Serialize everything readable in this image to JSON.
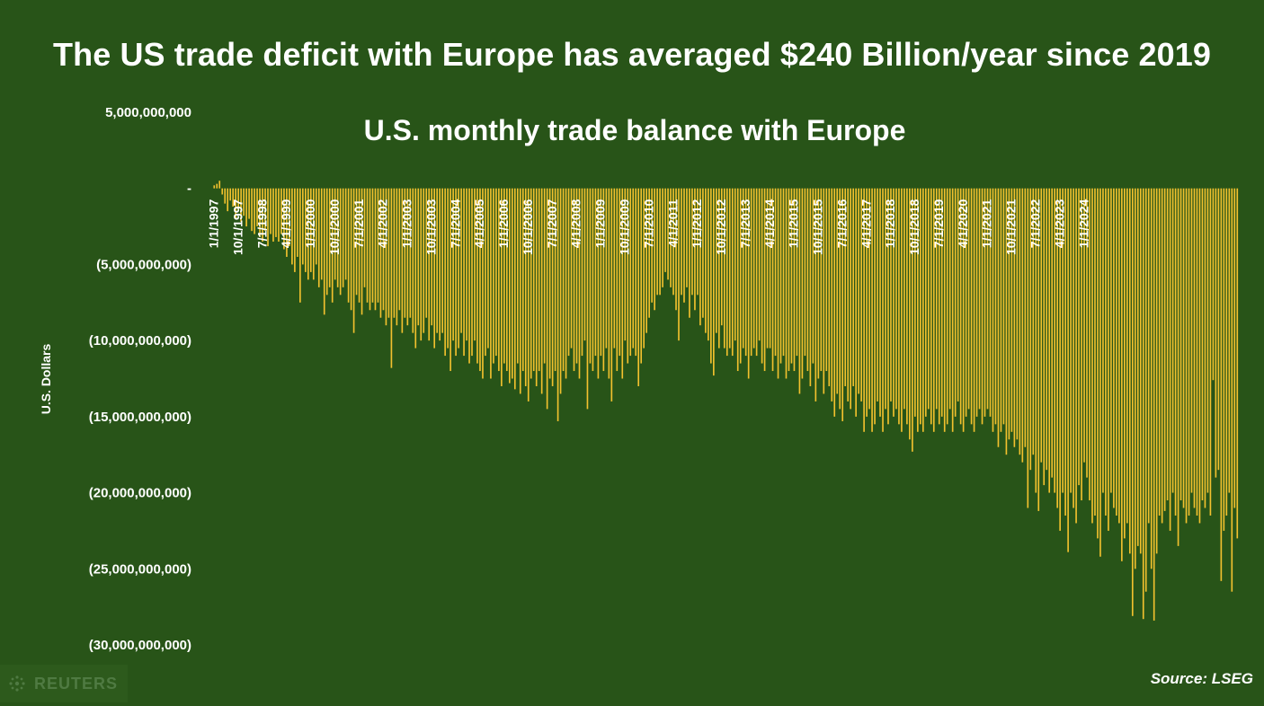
{
  "headline": "The US trade deficit with Europe has averaged $240 Billion/year since 2019",
  "source": "Source: LSEG",
  "logo": {
    "text": "REUTERS",
    "icon": "reuters-dot-logo-icon"
  },
  "colors": {
    "background": "#285418",
    "bar": "#f2c12e",
    "text": "#ffffff"
  },
  "chart_data": {
    "type": "bar",
    "title": "U.S. monthly trade balance with Europe",
    "ylabel": "U.S. Dollars",
    "xlabel": "",
    "ylim": [
      -30000000000,
      5000000000
    ],
    "yticks": [
      5000000000,
      0,
      -5000000000,
      -10000000000,
      -15000000000,
      -20000000000,
      -25000000000,
      -30000000000
    ],
    "ytick_labels": [
      "5,000,000,000",
      "-",
      "(5,000,000,000)",
      "(10,000,000,000)",
      "(15,000,000,000)",
      "(20,000,000,000)",
      "(25,000,000,000)",
      "(30,000,000,000)"
    ],
    "x_start": "1997-01",
    "frequency": "monthly",
    "xtick_labels": [
      "1/1/1997",
      "10/1/1997",
      "7/1/1998",
      "4/1/1999",
      "1/1/2000",
      "10/1/2000",
      "7/1/2001",
      "4/1/2002",
      "1/1/2003",
      "10/1/2003",
      "7/1/2004",
      "4/1/2005",
      "1/1/2006",
      "10/1/2006",
      "7/1/2007",
      "4/1/2008",
      "1/1/2009",
      "10/1/2009",
      "7/1/2010",
      "4/1/2011",
      "1/1/2012",
      "10/1/2012",
      "7/1/2013",
      "4/1/2014",
      "1/1/2015",
      "10/1/2015",
      "7/1/2016",
      "4/1/2017",
      "1/1/2018",
      "10/1/2018",
      "7/1/2019",
      "4/1/2020",
      "1/1/2021",
      "10/1/2021",
      "7/1/2022",
      "4/1/2023",
      "1/1/2024"
    ],
    "series": [
      {
        "values_billions": [
          0.2,
          0.3,
          0.5,
          -0.4,
          -1.0,
          -1.5,
          -0.8,
          -1.2,
          -2.0,
          -1.5,
          -2.2,
          -1.8,
          -2.5,
          -2.0,
          -2.8,
          -3.0,
          -2.5,
          -3.2,
          -3.5,
          -2.8,
          -3.8,
          -3.0,
          -3.5,
          -3.2,
          -3.5,
          -3.0,
          -4.0,
          -4.5,
          -3.8,
          -5.0,
          -5.5,
          -4.5,
          -7.5,
          -5.0,
          -5.5,
          -6.0,
          -5.5,
          -6.0,
          -5.0,
          -6.5,
          -6.0,
          -8.3,
          -7.0,
          -6.5,
          -7.5,
          -6.0,
          -6.5,
          -7.0,
          -6.5,
          -6.0,
          -7.5,
          -8.0,
          -9.5,
          -7.0,
          -7.5,
          -8.3,
          -6.5,
          -7.5,
          -8.0,
          -7.5,
          -8.0,
          -7.5,
          -8.5,
          -8.0,
          -9.0,
          -8.5,
          -11.8,
          -8.5,
          -9.0,
          -8.0,
          -9.5,
          -8.5,
          -9.0,
          -8.5,
          -9.5,
          -10.5,
          -9.0,
          -10.0,
          -9.5,
          -8.5,
          -10.0,
          -9.0,
          -10.5,
          -9.5,
          -10.0,
          -9.5,
          -11.0,
          -10.5,
          -12.0,
          -10.0,
          -11.0,
          -10.5,
          -9.5,
          -11.0,
          -10.0,
          -11.5,
          -11.0,
          -10.0,
          -11.5,
          -12.0,
          -12.5,
          -11.0,
          -10.5,
          -12.5,
          -11.5,
          -11.0,
          -12.0,
          -13.0,
          -11.5,
          -12.0,
          -12.8,
          -12.5,
          -13.2,
          -11.5,
          -13.5,
          -12.0,
          -13.0,
          -14.0,
          -12.5,
          -12.0,
          -13.0,
          -12.0,
          -13.5,
          -11.5,
          -14.5,
          -12.5,
          -13.0,
          -12.0,
          -15.3,
          -13.5,
          -12.0,
          -12.5,
          -11.0,
          -10.5,
          -12.0,
          -11.5,
          -12.5,
          -11.0,
          -10.0,
          -14.5,
          -11.5,
          -12.0,
          -11.0,
          -12.5,
          -11.0,
          -12.0,
          -10.5,
          -12.5,
          -14.0,
          -10.5,
          -12.0,
          -11.0,
          -12.5,
          -10.0,
          -11.5,
          -11.0,
          -10.5,
          -11.0,
          -13.0,
          -11.5,
          -10.5,
          -9.5,
          -8.5,
          -7.5,
          -8.0,
          -7.0,
          -7.0,
          -6.5,
          -5.5,
          -6.0,
          -6.5,
          -7.0,
          -8.0,
          -10.0,
          -7.0,
          -7.5,
          -6.5,
          -8.5,
          -7.0,
          -8.0,
          -7.0,
          -9.0,
          -8.5,
          -9.5,
          -10.0,
          -11.5,
          -12.3,
          -9.5,
          -10.5,
          -9.0,
          -10.5,
          -11.0,
          -10.5,
          -11.0,
          -10.0,
          -12.0,
          -11.5,
          -10.5,
          -11.0,
          -12.5,
          -11.0,
          -10.5,
          -11.0,
          -10.0,
          -11.5,
          -12.0,
          -10.5,
          -10.5,
          -12.0,
          -11.0,
          -12.5,
          -11.5,
          -11.0,
          -12.5,
          -12.0,
          -11.5,
          -12.0,
          -11.0,
          -13.5,
          -12.5,
          -11.0,
          -12.0,
          -13.0,
          -11.5,
          -14.0,
          -12.5,
          -12.0,
          -13.5,
          -12.0,
          -13.0,
          -14.0,
          -15.0,
          -13.5,
          -14.5,
          -15.3,
          -13.0,
          -14.0,
          -14.5,
          -13.0,
          -15.0,
          -13.5,
          -14.0,
          -16.0,
          -15.0,
          -14.5,
          -16.0,
          -15.5,
          -14.0,
          -15.0,
          -16.0,
          -14.5,
          -15.5,
          -14.0,
          -15.0,
          -14.5,
          -15.5,
          -16.0,
          -14.5,
          -15.5,
          -16.5,
          -17.3,
          -15.0,
          -16.0,
          -15.5,
          -16.0,
          -15.0,
          -14.5,
          -15.5,
          -16.0,
          -14.5,
          -15.5,
          -15.0,
          -16.0,
          -15.5,
          -14.5,
          -16.0,
          -15.0,
          -14.0,
          -15.5,
          -16.0,
          -15.0,
          -14.5,
          -15.5,
          -16.0,
          -15.0,
          -14.5,
          -15.5,
          -15.0,
          -14.5,
          -15.0,
          -16.0,
          -15.5,
          -17.0,
          -16.0,
          -15.5,
          -17.5,
          -16.5,
          -16.0,
          -17.0,
          -16.5,
          -17.5,
          -18.0,
          -17.0,
          -21.0,
          -18.5,
          -17.5,
          -20.0,
          -21.2,
          -18.0,
          -19.5,
          -18.5,
          -20.0,
          -19.0,
          -20.0,
          -21.0,
          -22.5,
          -20.0,
          -21.5,
          -23.9,
          -20.0,
          -21.0,
          -22.0,
          -19.5,
          -20.5,
          -18.0,
          -19.0,
          -20.5,
          -22.0,
          -21.5,
          -23.0,
          -24.2,
          -20.0,
          -21.5,
          -22.5,
          -20.0,
          -21.0,
          -21.5,
          -22.0,
          -24.5,
          -23.0,
          -22.0,
          -24.0,
          -28.1,
          -25.0,
          -23.5,
          -24.0,
          -28.3,
          -26.5,
          -22.0,
          -25.0,
          -28.4,
          -24.0,
          -21.5,
          -22.0,
          -21.2,
          -20.5,
          -22.5,
          -20.0,
          -21.5,
          -23.5,
          -20.5,
          -21.0,
          -22.0,
          -21.5,
          -20.0,
          -21.0,
          -21.5,
          -22.0,
          -20.5,
          -21.0,
          -20.0,
          -21.5,
          -12.6,
          -19.0,
          -18.5,
          -25.8,
          -22.5,
          -21.5,
          -20.0,
          -26.5,
          -21.0,
          -23.0
        ]
      }
    ]
  }
}
